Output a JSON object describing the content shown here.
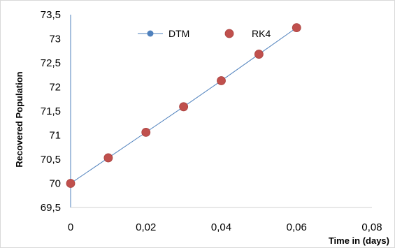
{
  "chart_data": {
    "type": "scatter",
    "title": "",
    "xlabel": "Time in (days)",
    "ylabel": "Recovered Population",
    "xlim": [
      0,
      0.08
    ],
    "ylim": [
      69.5,
      73.5
    ],
    "x_ticks": [
      "0",
      "0,02",
      "0,04",
      "0,06",
      "0,08"
    ],
    "y_ticks": [
      "69,5",
      "70",
      "70,5",
      "71",
      "71,5",
      "72",
      "72,5",
      "73",
      "73,5"
    ],
    "grid": false,
    "legend_position": "top",
    "series": [
      {
        "name": "DTM",
        "style": "line-with-markers",
        "color": "#4f81bd",
        "x": [
          0,
          0.01,
          0.02,
          0.03,
          0.04,
          0.05,
          0.06
        ],
        "y": [
          70.0,
          70.53,
          71.06,
          71.59,
          72.13,
          72.68,
          73.23
        ]
      },
      {
        "name": "RK4",
        "style": "markers",
        "color": "#c0504d",
        "x": [
          0,
          0.01,
          0.02,
          0.03,
          0.04,
          0.05,
          0.06
        ],
        "y": [
          70.0,
          70.53,
          71.06,
          71.59,
          72.13,
          72.68,
          73.23
        ]
      }
    ]
  }
}
